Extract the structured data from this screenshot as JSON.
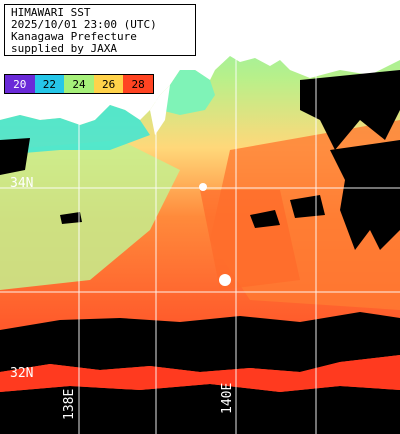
{
  "title_lines": [
    "HIMAWARI SST",
    "2025/10/01 23:00 (UTC)",
    "Kanagawa Prefecture",
    "supplied by JAXA"
  ],
  "colorbar": {
    "ticks": [
      "20",
      "22",
      "24",
      "26",
      "28"
    ],
    "colors": [
      "#6a2ad8",
      "#26c6e8",
      "#a6f07a",
      "#ffd24a",
      "#ff4422"
    ]
  },
  "axis_labels": {
    "lat_34": "34N",
    "lat_32": "32N",
    "lon_138": "138E",
    "lon_140": "140E"
  },
  "palette": {
    "coast_cool": "#7ff3b7",
    "coast_cyan": "#3de6d6",
    "mid_green": "#b8f08a",
    "yellow": "#ffe07a",
    "orange": "#ff8a3b",
    "orange_red": "#ff5a2b",
    "red": "#ff3a1f",
    "cloud_black": "#000000",
    "land_white": "#ffffff",
    "grid": "#ffffff"
  }
}
